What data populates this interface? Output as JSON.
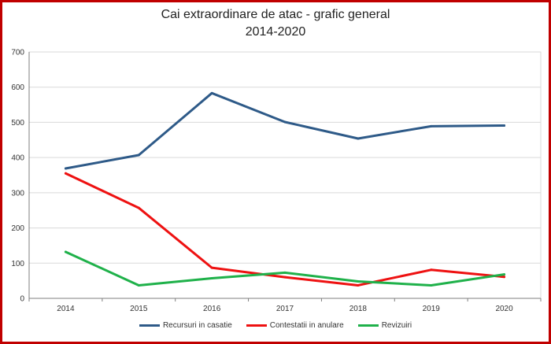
{
  "chart_data": {
    "type": "line",
    "title": "Cai extraordinare de atac - grafic general",
    "subtitle": "2014-2020",
    "xlabel": "",
    "ylabel": "",
    "categories": [
      "2014",
      "2015",
      "2016",
      "2017",
      "2018",
      "2019",
      "2020"
    ],
    "ylim": [
      0,
      700
    ],
    "yticks": [
      "0",
      "100",
      "200",
      "300",
      "400",
      "500",
      "600",
      "700"
    ],
    "grid": true,
    "legend_position": "bottom",
    "series": [
      {
        "name": "Recursuri in casatie",
        "color": "#2e5a88",
        "values": [
          369,
          407,
          583,
          501,
          454,
          489,
          491
        ]
      },
      {
        "name": "Contestatii in anulare",
        "color": "#ee1111",
        "values": [
          355,
          257,
          87,
          60,
          37,
          81,
          61
        ]
      },
      {
        "name": "Revizuiri",
        "color": "#1fb14a",
        "values": [
          132,
          37,
          57,
          73,
          48,
          37,
          68
        ]
      }
    ]
  },
  "colors": {
    "frame": "#c00000",
    "grid": "#d9d9d9",
    "axis": "#7f7f7f"
  }
}
